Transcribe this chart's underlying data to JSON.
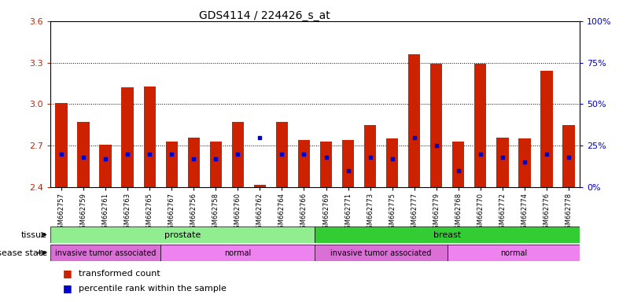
{
  "title": "GDS4114 / 224426_s_at",
  "samples": [
    "GSM662757",
    "GSM662759",
    "GSM662761",
    "GSM662763",
    "GSM662765",
    "GSM662767",
    "GSM662756",
    "GSM662758",
    "GSM662760",
    "GSM662762",
    "GSM662764",
    "GSM662766",
    "GSM662769",
    "GSM662771",
    "GSM662773",
    "GSM662775",
    "GSM662777",
    "GSM662779",
    "GSM662768",
    "GSM662770",
    "GSM662772",
    "GSM662774",
    "GSM662776",
    "GSM662778"
  ],
  "transformed_count": [
    3.01,
    2.87,
    2.71,
    3.12,
    3.13,
    2.73,
    2.76,
    2.73,
    2.87,
    2.42,
    2.87,
    2.74,
    2.73,
    2.74,
    2.85,
    2.75,
    3.36,
    3.29,
    2.73,
    3.29,
    2.76,
    2.75,
    3.24,
    2.85
  ],
  "percentile_rank": [
    20,
    18,
    17,
    20,
    20,
    20,
    17,
    17,
    20,
    30,
    20,
    20,
    18,
    10,
    18,
    17,
    30,
    25,
    10,
    20,
    18,
    15,
    20,
    18
  ],
  "ylim_left": [
    2.4,
    3.6
  ],
  "ylim_right": [
    0,
    100
  ],
  "yticks_left": [
    2.4,
    2.7,
    3.0,
    3.3,
    3.6
  ],
  "yticks_right": [
    0,
    25,
    50,
    75,
    100
  ],
  "grid_lines": [
    2.7,
    3.0,
    3.3
  ],
  "bar_color": "#cc2200",
  "dot_color": "#0000cc",
  "tissue_groups": [
    {
      "label": "prostate",
      "start": 0,
      "end": 12,
      "color": "#90ee90"
    },
    {
      "label": "breast",
      "start": 12,
      "end": 24,
      "color": "#32cd32"
    }
  ],
  "disease_groups": [
    {
      "label": "invasive tumor associated",
      "start": 0,
      "end": 5,
      "color": "#da70d6"
    },
    {
      "label": "normal",
      "start": 5,
      "end": 12,
      "color": "#ee82ee"
    },
    {
      "label": "invasive tumor associated",
      "start": 12,
      "end": 18,
      "color": "#da70d6"
    },
    {
      "label": "normal",
      "start": 18,
      "end": 24,
      "color": "#ee82ee"
    }
  ],
  "legend_items": [
    {
      "label": "transformed count",
      "color": "#cc2200"
    },
    {
      "label": "percentile rank within the sample",
      "color": "#0000cc"
    }
  ],
  "tissue_label": "tissue",
  "disease_label": "disease state",
  "left_ylabel_color": "#cc2200",
  "right_ylabel_color": "#0000cc",
  "background_color": "#ffffff"
}
